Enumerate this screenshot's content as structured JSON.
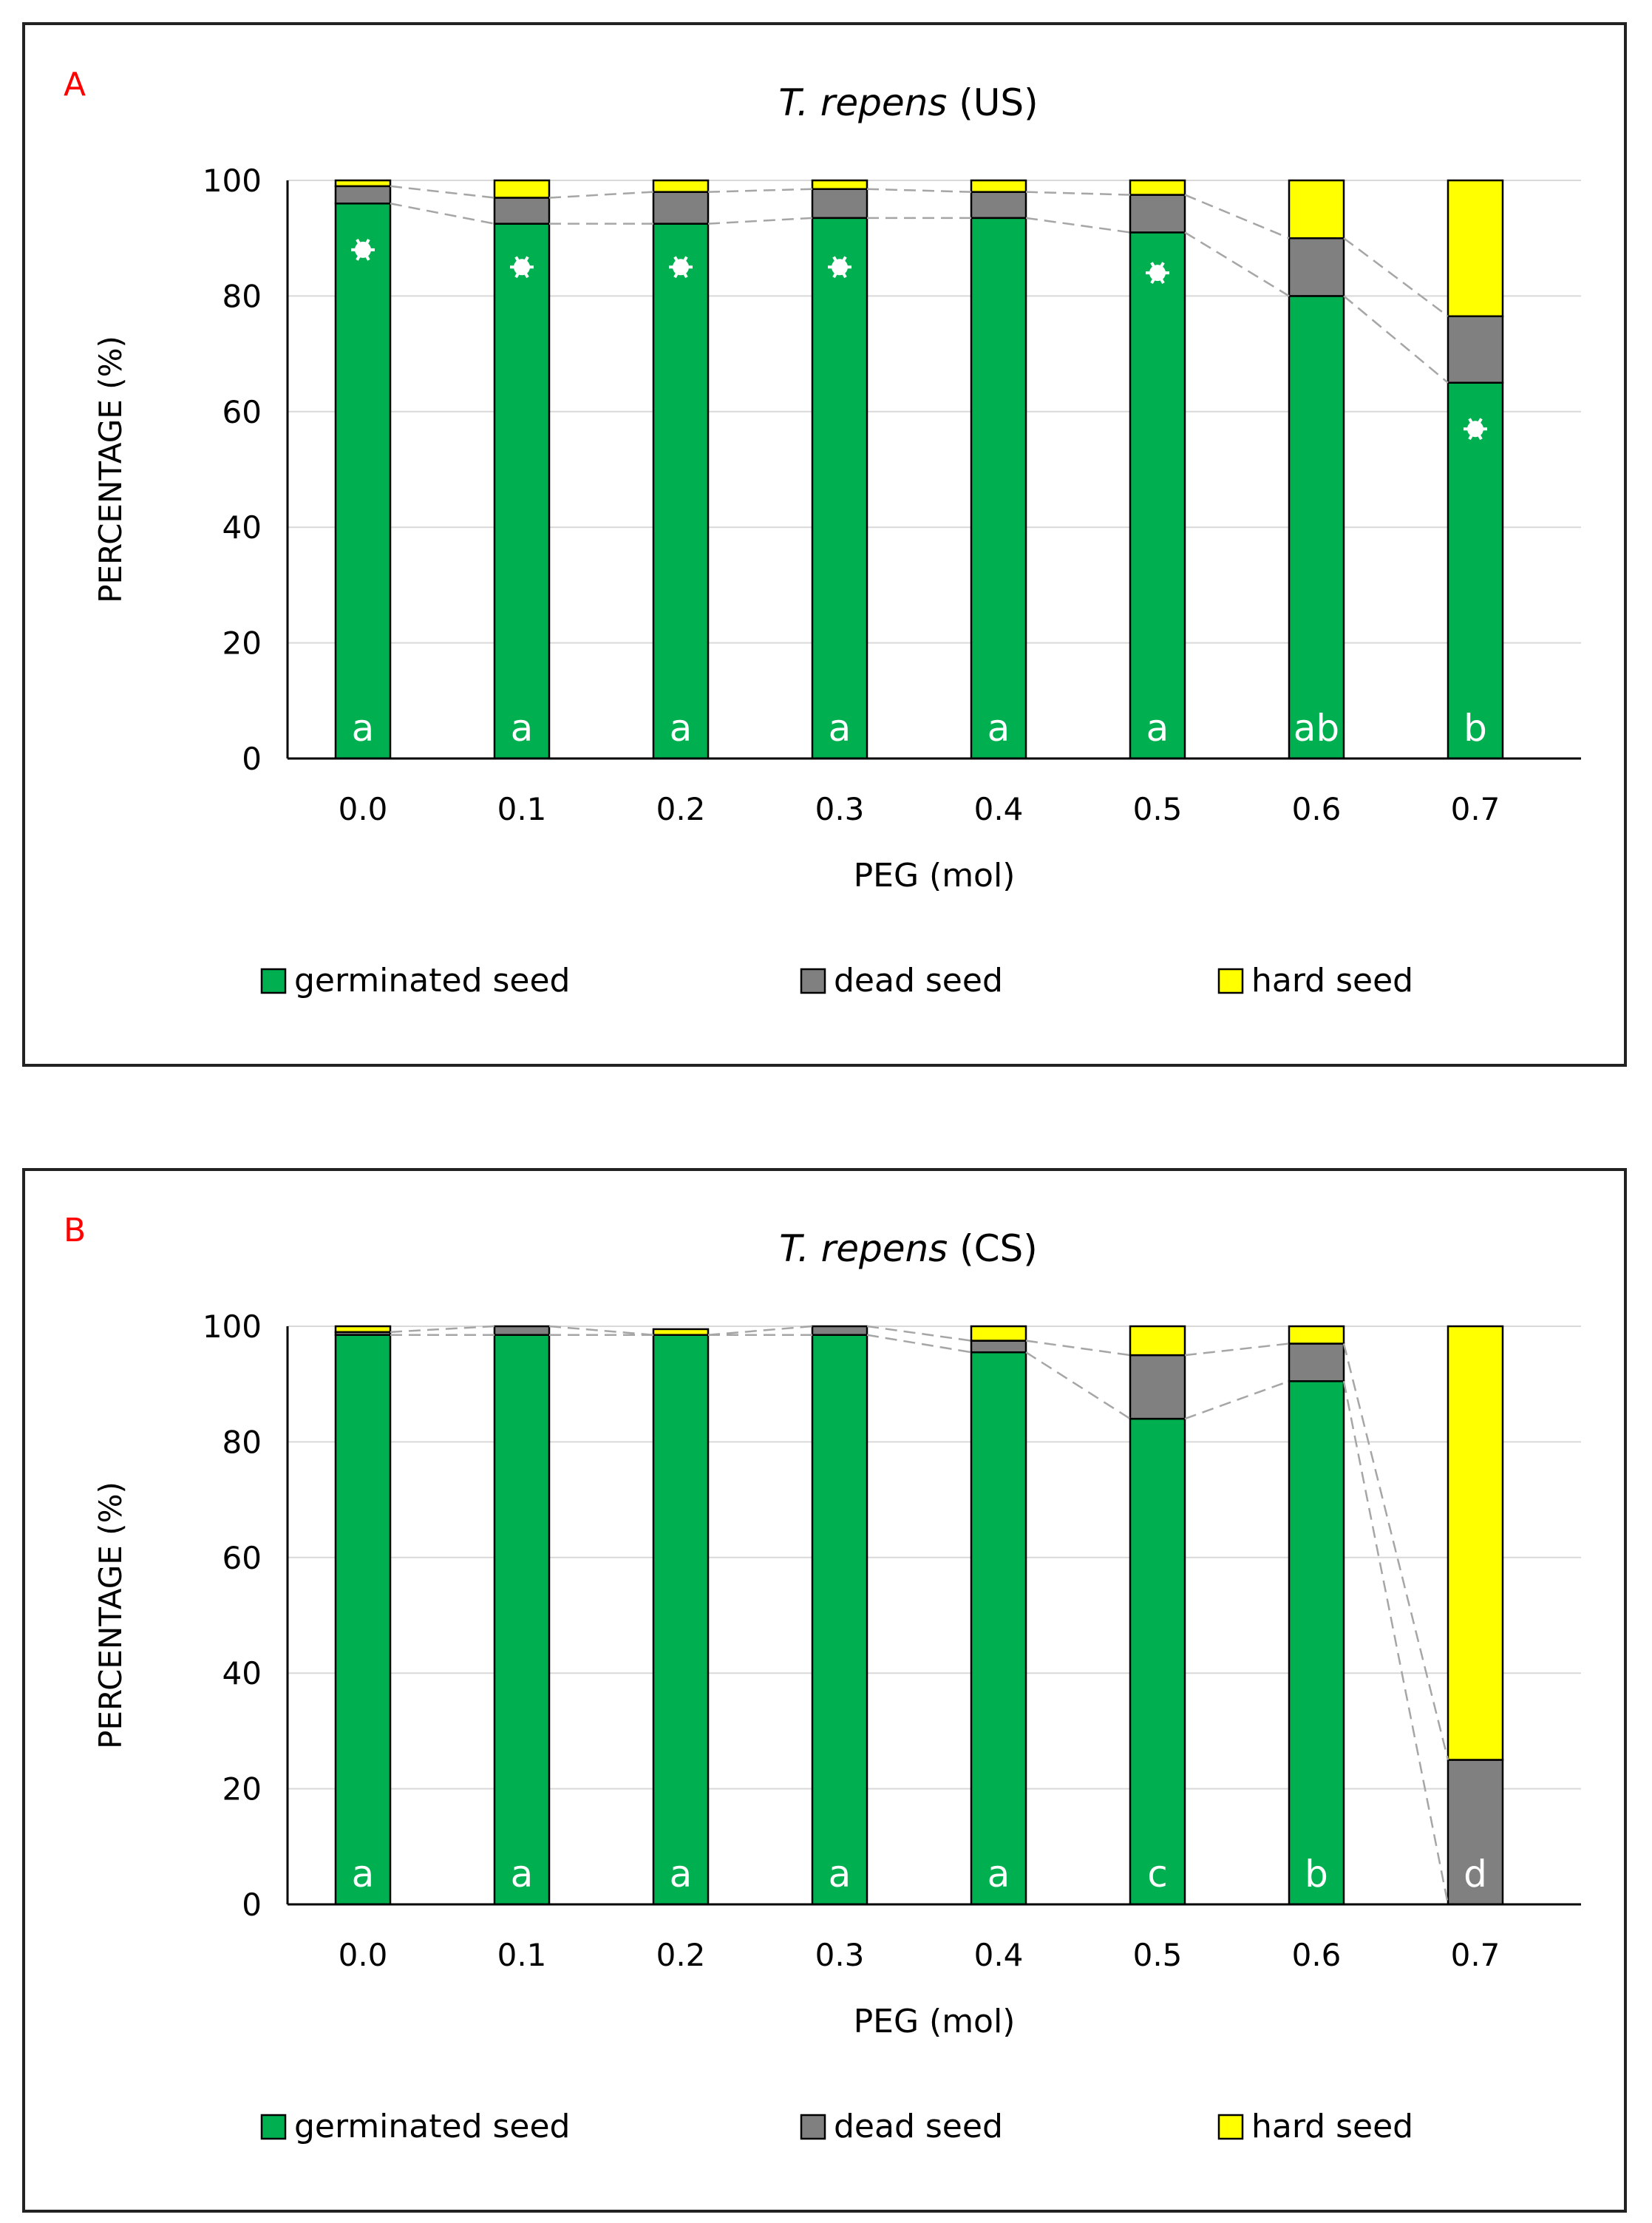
{
  "colors": {
    "germinated": "#00b050",
    "dead": "#808080",
    "hard": "#ffff00",
    "panel_label": "#ff0000",
    "grid": "#d9d9d9",
    "connector": "#a6a6a6",
    "axis": "#000000"
  },
  "chart_data": [
    {
      "type": "bar",
      "stacked": true,
      "panel_label": "A",
      "title_italic": "T. repens",
      "title_rest": "(US)",
      "xlabel": "PEG (mol)",
      "ylabel": "PERCENTAGE (%)",
      "ylim": [
        0,
        100
      ],
      "yticks": [
        "0",
        "20",
        "40",
        "60",
        "80",
        "100"
      ],
      "categories": [
        "0.0",
        "0.1",
        "0.2",
        "0.3",
        "0.4",
        "0.5",
        "0.6",
        "0.7"
      ],
      "series": [
        {
          "name": "germinated seed",
          "key": "germinated",
          "values": [
            96,
            92.5,
            92.5,
            93.5,
            93.5,
            91,
            80,
            65
          ]
        },
        {
          "name": "dead seed",
          "key": "dead",
          "values": [
            3,
            4.5,
            5.5,
            5,
            4.5,
            6.5,
            10,
            11.5
          ]
        },
        {
          "name": "hard seed",
          "key": "hard",
          "values": [
            1,
            3,
            2,
            1.5,
            2,
            2.5,
            10,
            23.5
          ]
        }
      ],
      "letters": [
        "a",
        "a",
        "a",
        "a",
        "a",
        "a",
        "ab",
        "b"
      ],
      "asterisk_markers": [
        {
          "category": "0.0",
          "value": 88
        },
        {
          "category": "0.1",
          "value": 85
        },
        {
          "category": "0.2",
          "value": 85
        },
        {
          "category": "0.3",
          "value": 85
        },
        {
          "category": "0.5",
          "value": 84
        },
        {
          "category": "0.7",
          "value": 57
        }
      ],
      "grid": true,
      "legend": "bottom"
    },
    {
      "type": "bar",
      "stacked": true,
      "panel_label": "B",
      "title_italic": "T. repens",
      "title_rest": "(CS)",
      "xlabel": "PEG (mol)",
      "ylabel": "PERCENTAGE (%)",
      "ylim": [
        0,
        100
      ],
      "yticks": [
        "0",
        "20",
        "40",
        "60",
        "80",
        "100"
      ],
      "categories": [
        "0.0",
        "0.1",
        "0.2",
        "0.3",
        "0.4",
        "0.5",
        "0.6",
        "0.7"
      ],
      "series": [
        {
          "name": "germinated seed",
          "key": "germinated",
          "values": [
            98.5,
            98.5,
            98.5,
            98.5,
            95.5,
            84,
            90.5,
            0
          ]
        },
        {
          "name": "dead seed",
          "key": "dead",
          "values": [
            0.5,
            1.5,
            0,
            1.5,
            2,
            11,
            6.5,
            25
          ]
        },
        {
          "name": "hard seed",
          "key": "hard",
          "values": [
            1,
            0,
            1,
            0,
            2.5,
            5,
            3,
            75
          ]
        }
      ],
      "letters": [
        "a",
        "a",
        "a",
        "a",
        "a",
        "c",
        "b",
        "d"
      ],
      "asterisk_markers": [],
      "grid": true,
      "legend": "bottom"
    }
  ]
}
